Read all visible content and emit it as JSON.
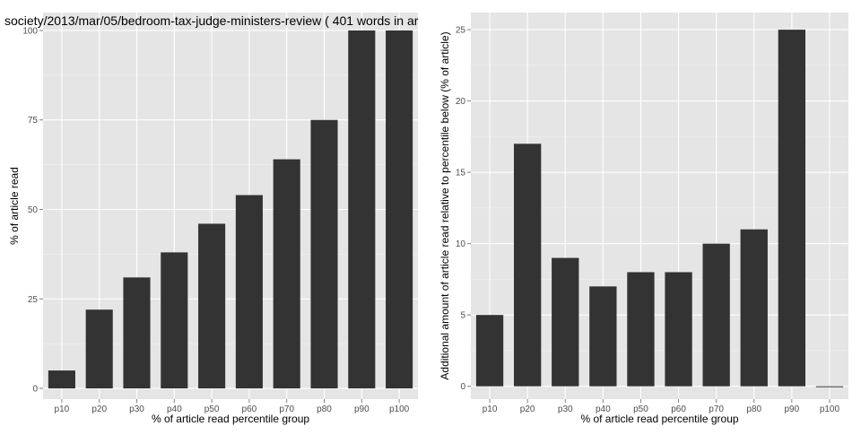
{
  "chart_data": [
    {
      "type": "bar",
      "title": "society/2013/mar/05/bedroom-tax-judge-ministers-review ( 401 words in ar",
      "xlabel": "% of article read percentile group",
      "ylabel": "% of article read",
      "categories": [
        "p10",
        "p20",
        "p30",
        "p40",
        "p50",
        "p60",
        "p70",
        "p80",
        "p90",
        "p100"
      ],
      "values": [
        5,
        22,
        31,
        38,
        46,
        54,
        64,
        75,
        100,
        100
      ],
      "ylim": [
        -3,
        105
      ],
      "yticks": [
        0,
        25,
        50,
        75,
        100
      ],
      "grid": true,
      "bar_color": "#333333",
      "panel_color": "#e5e5e5"
    },
    {
      "type": "bar",
      "title": "",
      "xlabel": "% of article read percentile group",
      "ylabel": "Additional amount of article read relative to percentile below (% of article)",
      "categories": [
        "p10",
        "p20",
        "p30",
        "p40",
        "p50",
        "p60",
        "p70",
        "p80",
        "p90",
        "p100"
      ],
      "values": [
        5,
        17,
        9,
        7,
        8,
        8,
        10,
        11,
        25,
        0
      ],
      "ylim": [
        -0.9,
        26.2
      ],
      "yticks": [
        0,
        5,
        10,
        15,
        20,
        25
      ],
      "grid": true,
      "bar_color": "#333333",
      "panel_color": "#e5e5e5"
    }
  ]
}
